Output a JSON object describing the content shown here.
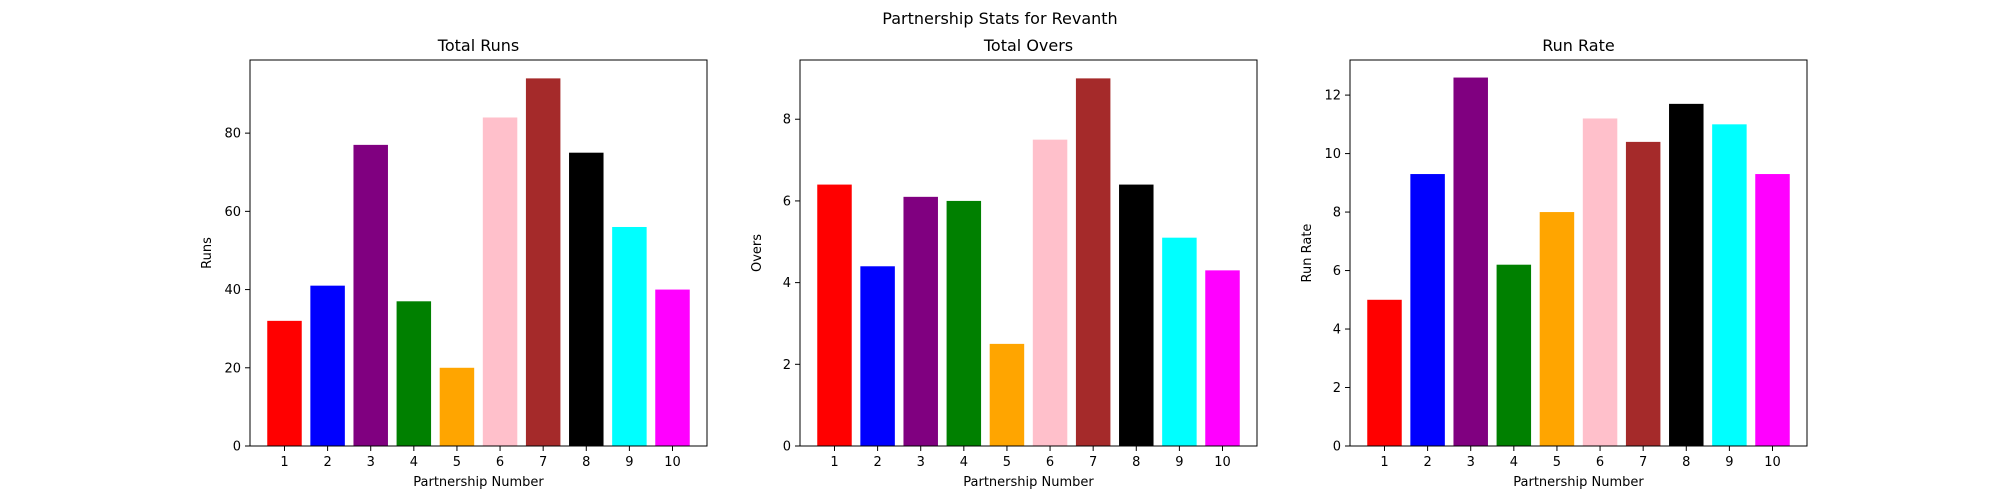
{
  "figure": {
    "suptitle": "Partnership Stats for Revanth"
  },
  "chart_data": [
    {
      "type": "bar",
      "title": "Total Runs",
      "xlabel": "Partnership Number",
      "ylabel": "Runs",
      "categories": [
        "1",
        "2",
        "3",
        "4",
        "5",
        "6",
        "7",
        "8",
        "9",
        "10"
      ],
      "values": [
        32,
        41,
        77,
        37,
        20,
        84,
        94,
        75,
        56,
        40
      ],
      "ylim": [
        0,
        98.7
      ],
      "yticks": [
        0,
        20,
        40,
        60,
        80
      ],
      "colors": [
        "#ff0000",
        "#0000ff",
        "#800080",
        "#008000",
        "#ffa500",
        "#ffc0cb",
        "#a52a2a",
        "#000000",
        "#00ffff",
        "#ff00ff"
      ],
      "grid": false
    },
    {
      "type": "bar",
      "title": "Total Overs",
      "xlabel": "Partnership Number",
      "ylabel": "Overs",
      "categories": [
        "1",
        "2",
        "3",
        "4",
        "5",
        "6",
        "7",
        "8",
        "9",
        "10"
      ],
      "values": [
        6.4,
        4.4,
        6.1,
        6.0,
        2.5,
        7.5,
        9.0,
        6.4,
        5.1,
        4.3
      ],
      "ylim": [
        0,
        9.45
      ],
      "yticks": [
        0,
        2,
        4,
        6,
        8
      ],
      "colors": [
        "#ff0000",
        "#0000ff",
        "#800080",
        "#008000",
        "#ffa500",
        "#ffc0cb",
        "#a52a2a",
        "#000000",
        "#00ffff",
        "#ff00ff"
      ],
      "grid": false
    },
    {
      "type": "bar",
      "title": "Run Rate",
      "xlabel": "Partnership Number",
      "ylabel": "Run Rate",
      "categories": [
        "1",
        "2",
        "3",
        "4",
        "5",
        "6",
        "7",
        "8",
        "9",
        "10"
      ],
      "values": [
        5.0,
        9.3,
        12.6,
        6.2,
        8.0,
        11.2,
        10.4,
        11.7,
        11.0,
        9.3
      ],
      "ylim": [
        0,
        13.2
      ],
      "yticks": [
        0,
        2,
        4,
        6,
        8,
        10,
        12
      ],
      "colors": [
        "#ff0000",
        "#0000ff",
        "#800080",
        "#008000",
        "#ffa500",
        "#ffc0cb",
        "#a52a2a",
        "#000000",
        "#00ffff",
        "#ff00ff"
      ],
      "grid": false
    }
  ]
}
